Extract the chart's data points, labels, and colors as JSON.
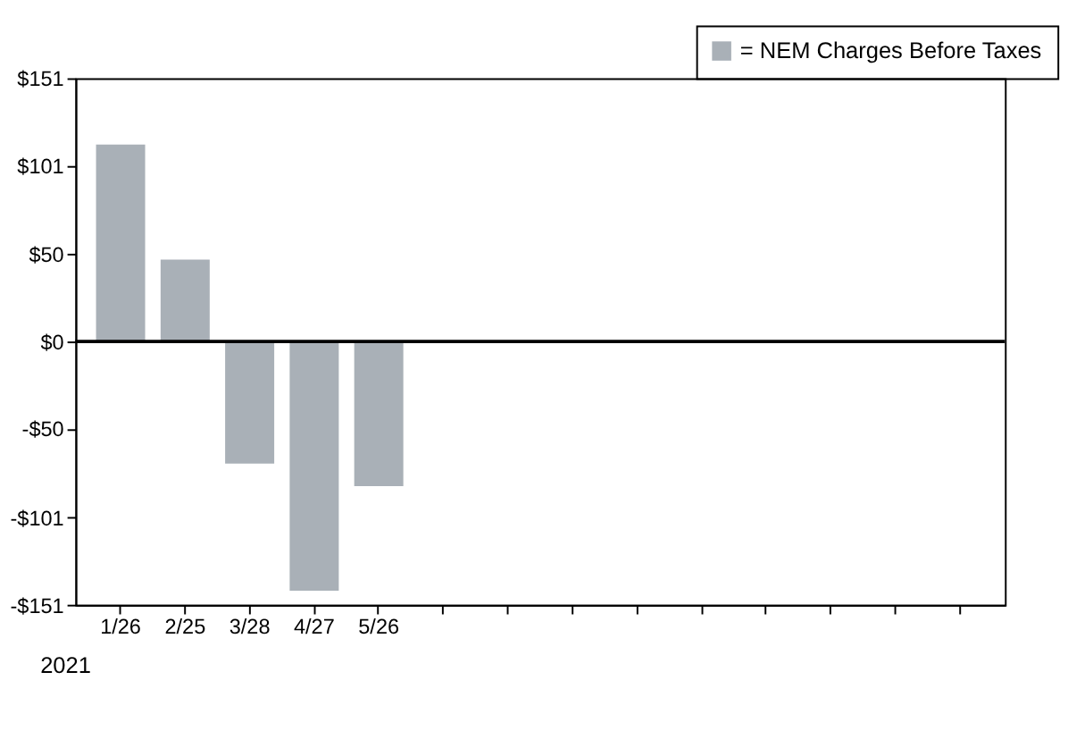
{
  "chart_data": {
    "type": "bar",
    "categories": [
      "1/26",
      "2/25",
      "3/28",
      "4/27",
      "5/26",
      null,
      null,
      null,
      null,
      null,
      null,
      null,
      null,
      null
    ],
    "series": [
      {
        "name": "= NEM Charges Before Taxes",
        "color": "#a9b0b7",
        "values": [
          113,
          47,
          -70,
          -143,
          -83,
          null,
          null,
          null,
          null,
          null,
          null,
          null,
          null,
          null
        ]
      }
    ],
    "ylim": [
      -151,
      151
    ],
    "yticks": [
      {
        "value": 151,
        "label": "$151"
      },
      {
        "value": 101,
        "label": "$101"
      },
      {
        "value": 50,
        "label": "$50"
      },
      {
        "value": 0,
        "label": "$0"
      },
      {
        "value": -50,
        "label": "-$50"
      },
      {
        "value": -101,
        "label": "-$101"
      },
      {
        "value": -151,
        "label": "-$151"
      }
    ],
    "ref_lines": [
      {
        "axis": "y",
        "value": 0,
        "color": "#000000"
      }
    ],
    "annotations": [
      "2021"
    ],
    "legend": "top right",
    "grid": false
  }
}
